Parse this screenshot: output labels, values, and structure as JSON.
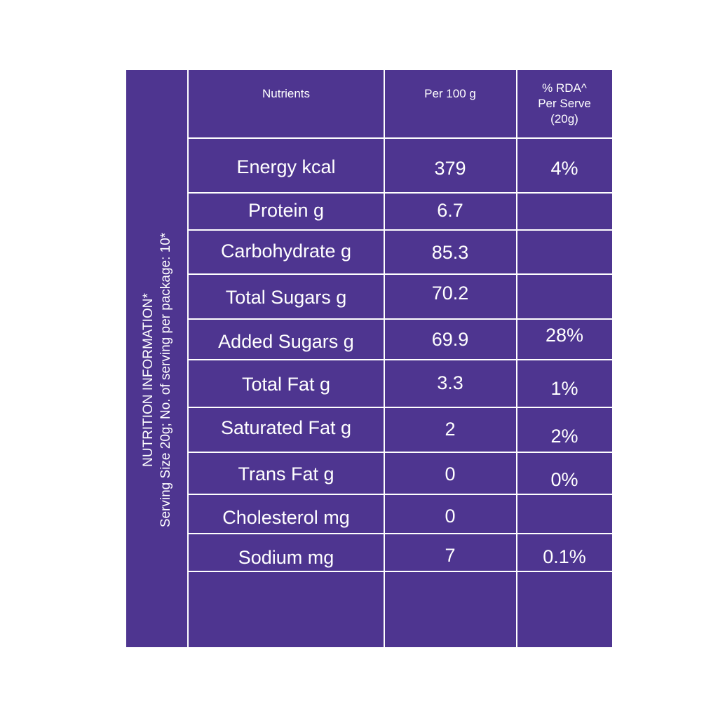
{
  "side_label": {
    "line1": "NUTRITION INFORMATION*",
    "line2": "Serving Size 20g; No. of serving per package: 10*"
  },
  "headers": {
    "nutrients": "Nutrients",
    "per100": "Per 100 g",
    "rda_line1": "% RDA^",
    "rda_line2": "Per Serve",
    "rda_line3": "(20g)"
  },
  "rows": [
    {
      "name": "Energy kcal",
      "per100": "379",
      "rda": "4%"
    },
    {
      "name": "Protein g",
      "per100": "6.7",
      "rda": ""
    },
    {
      "name": "Carbohydrate g",
      "per100": "85.3",
      "rda": ""
    },
    {
      "name": "Total Sugars g",
      "per100": "70.2",
      "rda": ""
    },
    {
      "name": "Added Sugars g",
      "per100": "69.9",
      "rda": "28%"
    },
    {
      "name": "Total Fat g",
      "per100": "3.3",
      "rda": "1%"
    },
    {
      "name": "Saturated Fat g",
      "per100": "2",
      "rda": "2%"
    },
    {
      "name": "Trans Fat g",
      "per100": "0",
      "rda": "0%"
    },
    {
      "name": "Cholesterol mg",
      "per100": "0",
      "rda": ""
    },
    {
      "name": "Sodium mg",
      "per100": "7",
      "rda": "0.1%"
    }
  ],
  "colors": {
    "panel": "#4e3590",
    "text": "#ffffff"
  }
}
